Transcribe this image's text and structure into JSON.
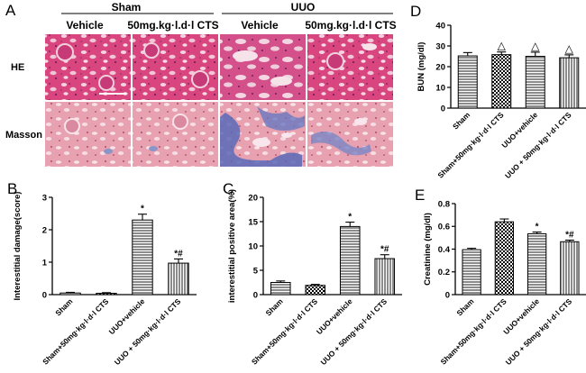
{
  "panel_A": {
    "letter": "A",
    "groups": [
      {
        "label": "Sham",
        "columns": [
          "Vehicle",
          "50mg.kg·l.d·l CTS"
        ]
      },
      {
        "label": "UUO",
        "columns": [
          "Vehicle",
          "50mg.kg·l.d·l CTS"
        ]
      }
    ],
    "rows": [
      "HE",
      "Masson"
    ],
    "colors": {
      "he_stain": "#d63a7a",
      "masson_stain": "#e89aa8",
      "fibrosis": "#5a6ab8"
    }
  },
  "chart_data": [
    {
      "letter": "D",
      "type": "bar",
      "ylabel": "BUN (mg/dl)",
      "categories": [
        "Sham",
        "Sham+50mg·kg·l·d·l CTS",
        "UUO+vehicle",
        "UUO + 50mg·kg·l·d·l CTS"
      ],
      "values": [
        25.2,
        25.8,
        25.0,
        24.3
      ],
      "errors": [
        1.6,
        1.3,
        2.0,
        1.4
      ],
      "annotations": [
        "",
        "△",
        "△",
        "△"
      ],
      "ylim": [
        0,
        40
      ],
      "yticks": [
        0,
        10,
        20,
        30,
        40
      ],
      "patterns": [
        "hlines",
        "checker",
        "hlines",
        "vlines"
      ]
    },
    {
      "letter": "B",
      "type": "bar",
      "ylabel": "Interestitial damage(score)",
      "categories": [
        "Sham",
        "Sham+50mg·kg·l·d·l CTS",
        "UUO+vehicle",
        "UUO + 50mg·kg·l·d·l CTS"
      ],
      "values": [
        0.05,
        0.04,
        2.3,
        0.97
      ],
      "errors": [
        0.02,
        0.02,
        0.18,
        0.13
      ],
      "annotations": [
        "",
        "",
        "*",
        "*#"
      ],
      "ylim": [
        0,
        3
      ],
      "yticks": [
        0,
        1,
        2,
        3
      ],
      "patterns": [
        "hlines",
        "checker",
        "hlines",
        "vlines"
      ]
    },
    {
      "letter": "C",
      "type": "bar",
      "ylabel": "interestitial positive area(%)",
      "categories": [
        "Sham",
        "Sham+50mg·kg·l·d·l CTS",
        "UUO+vehicle",
        "UUO + 50mg·kg·l·d·l CTS"
      ],
      "values": [
        2.5,
        1.9,
        14.0,
        7.4
      ],
      "errors": [
        0.3,
        0.2,
        0.9,
        0.8
      ],
      "annotations": [
        "",
        "",
        "*",
        "*#"
      ],
      "ylim": [
        0,
        20
      ],
      "yticks": [
        0,
        5,
        10,
        15,
        20
      ],
      "patterns": [
        "hlines",
        "checker",
        "hlines",
        "vlines"
      ]
    },
    {
      "letter": "E",
      "type": "bar",
      "ylabel": "Creatinine (mg/dl)",
      "categories": [
        "Sham",
        "Sham+50mg·kg·l·d·l CTS",
        "UUO+vehicle",
        "UUO + 50mg·kg·l·d·l CTS"
      ],
      "values": [
        0.395,
        0.64,
        0.535,
        0.465
      ],
      "errors": [
        0.012,
        0.025,
        0.015,
        0.014
      ],
      "annotations": [
        "",
        "",
        "*",
        "*#"
      ],
      "ylim": [
        0,
        0.8
      ],
      "yticks": [
        0,
        0.2,
        0.4,
        0.6,
        0.8
      ],
      "patterns": [
        "hlines",
        "checker",
        "hlines",
        "vlines"
      ]
    }
  ]
}
